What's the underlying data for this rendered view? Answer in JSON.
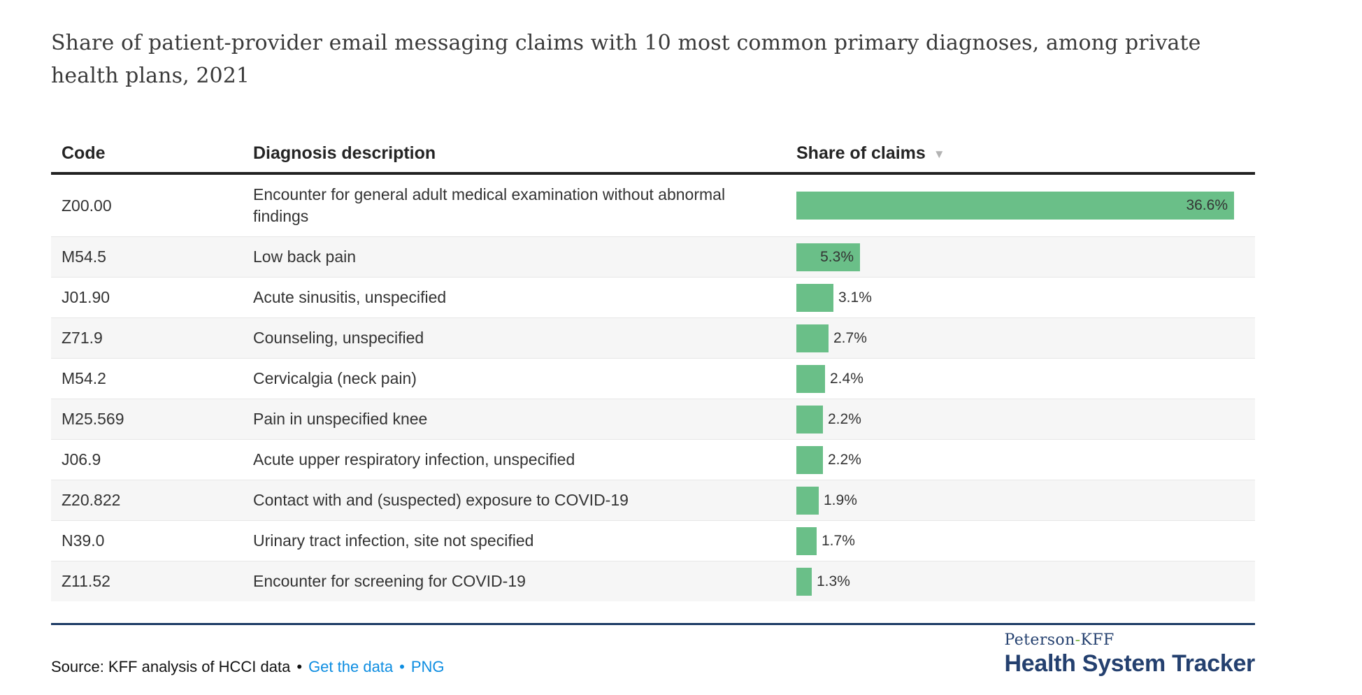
{
  "title": "Share of patient-provider email messaging claims with 10 most common primary diagnoses, among private health plans, 2021",
  "table": {
    "columns": {
      "code": "Code",
      "description": "Diagnosis description",
      "share": "Share of claims"
    },
    "sort_icon": "▼",
    "rows": [
      {
        "code": "Z00.00",
        "description": "Encounter for general adult medical examination without abnormal findings",
        "value": 36.6,
        "label": "36.6%"
      },
      {
        "code": "M54.5",
        "description": "Low back pain",
        "value": 5.3,
        "label": "5.3%"
      },
      {
        "code": "J01.90",
        "description": "Acute sinusitis, unspecified",
        "value": 3.1,
        "label": "3.1%"
      },
      {
        "code": "Z71.9",
        "description": "Counseling, unspecified",
        "value": 2.7,
        "label": "2.7%"
      },
      {
        "code": "M54.2",
        "description": "Cervicalgia (neck pain)",
        "value": 2.4,
        "label": "2.4%"
      },
      {
        "code": "M25.569",
        "description": "Pain in unspecified knee",
        "value": 2.2,
        "label": "2.2%"
      },
      {
        "code": "J06.9",
        "description": "Acute upper respiratory infection, unspecified",
        "value": 2.2,
        "label": "2.2%"
      },
      {
        "code": "Z20.822",
        "description": "Contact with and (suspected) exposure to COVID-19",
        "value": 1.9,
        "label": "1.9%"
      },
      {
        "code": "N39.0",
        "description": "Urinary tract infection, site not specified",
        "value": 1.7,
        "label": "1.7%"
      },
      {
        "code": "Z11.52",
        "description": "Encounter for screening for COVID-19",
        "value": 1.3,
        "label": "1.3%"
      }
    ]
  },
  "chart_data": {
    "type": "bar",
    "orientation": "horizontal",
    "title": "Share of patient-provider email messaging claims with 10 most common primary diagnoses, among private health plans, 2021",
    "categories": [
      "Z00.00",
      "M54.5",
      "J01.90",
      "Z71.9",
      "M54.2",
      "M25.569",
      "J06.9",
      "Z20.822",
      "N39.0",
      "Z11.52"
    ],
    "category_descriptions": [
      "Encounter for general adult medical examination without abnormal findings",
      "Low back pain",
      "Acute sinusitis, unspecified",
      "Counseling, unspecified",
      "Cervicalgia (neck pain)",
      "Pain in unspecified knee",
      "Acute upper respiratory infection, unspecified",
      "Contact with and (suspected) exposure to COVID-19",
      "Urinary tract infection, site not specified",
      "Encounter for screening for COVID-19"
    ],
    "values": [
      36.6,
      5.3,
      3.1,
      2.7,
      2.4,
      2.2,
      2.2,
      1.9,
      1.7,
      1.3
    ],
    "value_labels": [
      "36.6%",
      "5.3%",
      "3.1%",
      "2.7%",
      "2.4%",
      "2.2%",
      "2.2%",
      "1.9%",
      "1.7%",
      "1.3%"
    ],
    "unit": "%",
    "xlim": [
      0,
      38.3
    ],
    "sort": "descending",
    "grid": false,
    "legend": false,
    "bar_color": "#6abf88"
  },
  "footer": {
    "source_text": "Source: KFF analysis of HCCI data",
    "bullet": "•",
    "get_data_label": "Get the data",
    "png_label": "PNG",
    "logo": {
      "prefix": "Peterson",
      "dash": "-",
      "suffix": "KFF",
      "name": "Health System Tracker"
    }
  },
  "colors": {
    "bar_green": "#6abf88",
    "link_blue": "#0d8de1",
    "logo_navy": "#24406f",
    "logo_dash_green": "#77b43f",
    "divider_navy": "#1b3a64",
    "header_rule": "#222222",
    "alt_row": "#f6f6f6"
  }
}
